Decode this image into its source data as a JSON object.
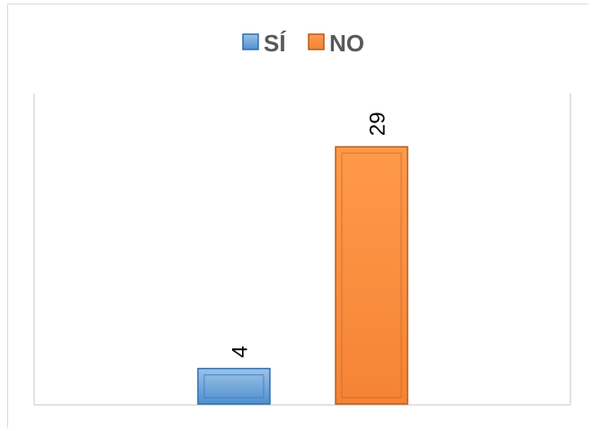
{
  "chart_data": {
    "type": "bar",
    "categories": [
      ""
    ],
    "series": [
      {
        "name": "SÍ",
        "values": [
          4
        ],
        "color": "#5b9bd5"
      },
      {
        "name": "NO",
        "values": [
          29
        ],
        "color": "#ed7d31"
      }
    ],
    "data_labels": [
      "4",
      "29"
    ],
    "ylim": [
      0,
      35
    ],
    "legend_position": "top",
    "grid": false
  }
}
